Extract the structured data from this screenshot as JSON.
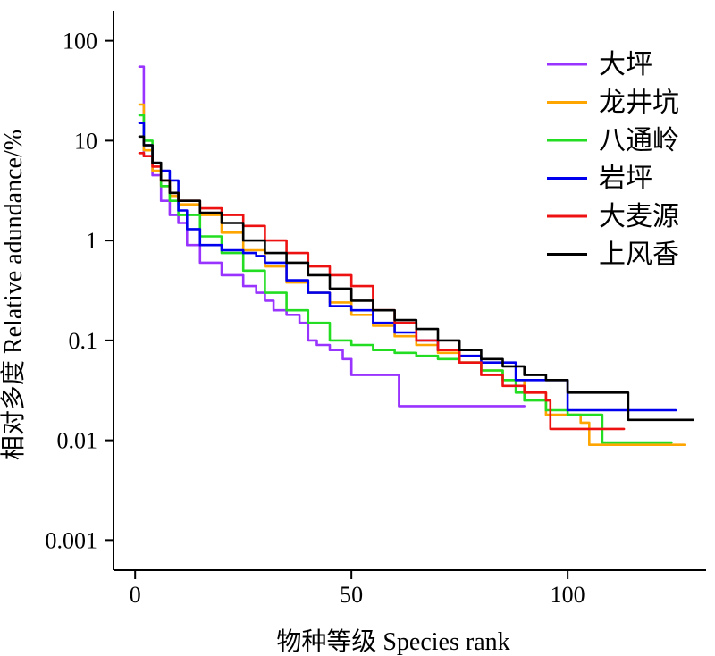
{
  "chart_data": {
    "type": "line",
    "title": "",
    "xlabel": "物种等级 Species rank",
    "ylabel": "相对多度 Relative adundance/%",
    "y_scale": "log",
    "xlim": [
      -5,
      132
    ],
    "ylim": [
      0.0005,
      200
    ],
    "x_ticks": [
      0,
      50,
      100
    ],
    "x_tick_labels": [
      "0",
      "50",
      "100"
    ],
    "y_ticks": [
      100,
      10,
      1,
      0.1,
      0.01,
      0.001
    ],
    "y_tick_labels": [
      "100",
      "10",
      "1",
      "0.1",
      "0.01",
      "0.001"
    ],
    "grid": false,
    "legend_position": "top-right",
    "series": [
      {
        "name": "大坪",
        "color": "#9933ff",
        "x": [
          1,
          2,
          4,
          6,
          8,
          10,
          12,
          15,
          20,
          25,
          28,
          30,
          32,
          35,
          38,
          40,
          42,
          45,
          48,
          50,
          52,
          55,
          58,
          60,
          61,
          65,
          70,
          75,
          80,
          85,
          90
        ],
        "y": [
          55,
          7,
          4.5,
          2.5,
          1.8,
          1.5,
          0.9,
          0.6,
          0.45,
          0.35,
          0.3,
          0.25,
          0.2,
          0.18,
          0.15,
          0.1,
          0.09,
          0.08,
          0.065,
          0.045,
          0.045,
          0.045,
          0.045,
          0.045,
          0.022,
          0.022,
          0.022,
          0.022,
          0.022,
          0.022,
          0.022
        ]
      },
      {
        "name": "龙井坑",
        "color": "#ffa500",
        "x": [
          1,
          2,
          4,
          6,
          8,
          10,
          15,
          20,
          25,
          30,
          35,
          40,
          45,
          50,
          55,
          60,
          65,
          70,
          75,
          80,
          85,
          90,
          95,
          100,
          103,
          105,
          110,
          115,
          120,
          125,
          127
        ],
        "y": [
          23,
          8,
          5,
          3.5,
          2.8,
          2.3,
          1.8,
          1.2,
          0.8,
          0.55,
          0.38,
          0.3,
          0.24,
          0.18,
          0.14,
          0.11,
          0.09,
          0.075,
          0.06,
          0.05,
          0.04,
          0.03,
          0.018,
          0.018,
          0.015,
          0.009,
          0.009,
          0.009,
          0.009,
          0.009,
          0.009
        ]
      },
      {
        "name": "八通岭",
        "color": "#22dd22",
        "x": [
          1,
          2,
          4,
          6,
          8,
          10,
          15,
          20,
          25,
          30,
          35,
          40,
          45,
          50,
          55,
          60,
          65,
          70,
          75,
          80,
          85,
          88,
          90,
          95,
          100,
          105,
          108,
          110,
          115,
          120,
          124
        ],
        "y": [
          18,
          10,
          6,
          3.5,
          2.5,
          1.8,
          1.1,
          0.75,
          0.5,
          0.3,
          0.2,
          0.15,
          0.1,
          0.09,
          0.08,
          0.075,
          0.07,
          0.065,
          0.06,
          0.05,
          0.04,
          0.03,
          0.025,
          0.02,
          0.018,
          0.018,
          0.0095,
          0.0095,
          0.0095,
          0.0095,
          0.0095
        ]
      },
      {
        "name": "岩坪",
        "color": "#0000ee",
        "x": [
          1,
          2,
          4,
          6,
          8,
          10,
          12,
          15,
          20,
          25,
          28,
          30,
          35,
          40,
          45,
          50,
          55,
          60,
          65,
          70,
          75,
          80,
          85,
          88,
          90,
          95,
          100,
          105,
          110,
          115,
          120,
          125
        ],
        "y": [
          15,
          9,
          6,
          5,
          4,
          2,
          1.3,
          0.9,
          0.8,
          0.75,
          0.7,
          0.6,
          0.4,
          0.3,
          0.22,
          0.2,
          0.15,
          0.12,
          0.1,
          0.08,
          0.07,
          0.06,
          0.06,
          0.04,
          0.04,
          0.04,
          0.02,
          0.02,
          0.02,
          0.02,
          0.02,
          0.02
        ]
      },
      {
        "name": "大麦源",
        "color": "#ee1111",
        "x": [
          1,
          2,
          4,
          6,
          8,
          10,
          15,
          20,
          25,
          30,
          35,
          40,
          45,
          50,
          55,
          60,
          65,
          70,
          75,
          80,
          85,
          90,
          95,
          96,
          100,
          105,
          110,
          113
        ],
        "y": [
          7.5,
          7,
          5.5,
          4,
          3,
          2.5,
          2.1,
          1.8,
          1.4,
          1.0,
          0.75,
          0.55,
          0.45,
          0.35,
          0.2,
          0.15,
          0.1,
          0.08,
          0.06,
          0.045,
          0.035,
          0.03,
          0.025,
          0.013,
          0.013,
          0.013,
          0.013,
          0.013
        ]
      },
      {
        "name": "上风香",
        "color": "#000000",
        "x": [
          1,
          2,
          4,
          6,
          8,
          10,
          15,
          20,
          25,
          30,
          35,
          40,
          45,
          50,
          55,
          60,
          65,
          70,
          75,
          80,
          85,
          90,
          95,
          100,
          105,
          110,
          114,
          115,
          120,
          125,
          129
        ],
        "y": [
          11,
          9,
          6,
          4,
          3,
          2.5,
          1.9,
          1.5,
          1.0,
          0.75,
          0.6,
          0.45,
          0.33,
          0.25,
          0.2,
          0.16,
          0.13,
          0.1,
          0.08,
          0.065,
          0.055,
          0.045,
          0.04,
          0.03,
          0.03,
          0.03,
          0.016,
          0.016,
          0.016,
          0.016,
          0.016
        ]
      }
    ]
  }
}
